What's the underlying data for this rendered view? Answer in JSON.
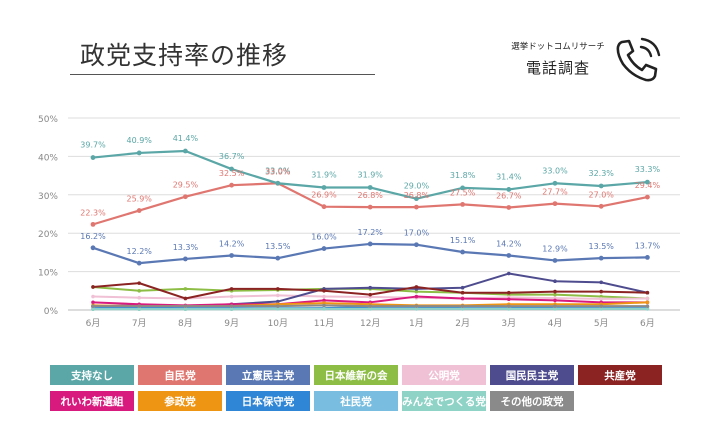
{
  "header": {
    "title": "政党支持率の推移",
    "source_name": "選挙ドットコムリサーチ",
    "source_title": "電話調査"
  },
  "chart_data": {
    "type": "line",
    "categories": [
      "6月",
      "7月",
      "8月",
      "9月",
      "10月",
      "11月",
      "12月",
      "1月",
      "2月",
      "3月",
      "4月",
      "5月",
      "6月"
    ],
    "ylim": [
      0,
      50
    ],
    "yticks": [
      "0%",
      "10%",
      "20%",
      "30%",
      "40%",
      "50%"
    ],
    "grid": true,
    "legend_position": "bottom",
    "series": [
      {
        "name": "支持なし",
        "color": "#5ba6a6",
        "labeled": true,
        "label_dy": -10,
        "values": [
          39.7,
          40.9,
          41.4,
          36.7,
          33.0,
          31.9,
          31.9,
          29.0,
          31.8,
          31.4,
          33.0,
          32.3,
          33.3
        ],
        "labels": [
          "39.7%",
          "40.9%",
          "41.4%",
          "36.7%",
          "33.0%",
          "31.9%",
          "31.9%",
          "29.0%",
          "31.8%",
          "31.4%",
          "33.0%",
          "32.3%",
          "33.3%"
        ]
      },
      {
        "name": "自民党",
        "color": "#e07670",
        "labeled": true,
        "label_dy": -9,
        "values": [
          22.3,
          25.9,
          29.5,
          32.5,
          33.0,
          26.9,
          26.8,
          26.8,
          27.5,
          26.7,
          27.7,
          27.0,
          29.4
        ],
        "labels": [
          "22.3%",
          "25.9%",
          "29.5%",
          "32.5%",
          "33.0%",
          "26.9%",
          "26.8%",
          "26.8%",
          "27.5%",
          "26.7%",
          "27.7%",
          "27.0%",
          "29.4%"
        ]
      },
      {
        "name": "立憲民主党",
        "color": "#5a78b4",
        "labeled": true,
        "label_dy": -9,
        "values": [
          16.2,
          12.2,
          13.3,
          14.2,
          13.5,
          16.0,
          17.2,
          17.0,
          15.1,
          14.2,
          12.9,
          13.5,
          13.7
        ],
        "labels": [
          "16.2%",
          "12.2%",
          "13.3%",
          "14.2%",
          "13.5%",
          "16.0%",
          "17.2%",
          "17.0%",
          "15.1%",
          "14.2%",
          "12.9%",
          "13.5%",
          "13.7%"
        ]
      },
      {
        "name": "日本維新の会",
        "color": "#8dbd45",
        "values": [
          6.0,
          5.0,
          5.5,
          5.0,
          5.2,
          5.5,
          5.5,
          4.8,
          4.5,
          4.0,
          4.0,
          3.5,
          3.0
        ]
      },
      {
        "name": "公明党",
        "color": "#f0c0d4",
        "values": [
          3.5,
          3.2,
          3.0,
          3.5,
          3.8,
          3.5,
          3.4,
          3.2,
          3.0,
          3.3,
          3.1,
          2.9,
          3.0
        ]
      },
      {
        "name": "国民民主党",
        "color": "#4e4c8e",
        "values": [
          1.0,
          1.2,
          1.0,
          1.5,
          2.2,
          5.5,
          5.8,
          5.5,
          5.8,
          9.5,
          7.5,
          7.2,
          4.5
        ]
      },
      {
        "name": "共産党",
        "color": "#8b2323",
        "values": [
          6.0,
          7.0,
          3.0,
          5.5,
          5.5,
          5.0,
          4.0,
          6.0,
          4.5,
          4.5,
          4.8,
          4.8,
          4.5
        ]
      },
      {
        "name": "れいわ新選組",
        "color": "#d81a7e",
        "values": [
          2.0,
          1.5,
          1.2,
          1.5,
          1.5,
          2.5,
          2.0,
          3.5,
          3.0,
          2.8,
          2.5,
          2.0,
          2.0
        ]
      },
      {
        "name": "参政党",
        "color": "#ef9514",
        "values": [
          1.2,
          1.0,
          1.0,
          1.0,
          1.5,
          1.8,
          1.5,
          1.2,
          1.2,
          1.5,
          1.5,
          1.5,
          2.0
        ]
      },
      {
        "name": "日本保守党",
        "color": "#2f86d6",
        "values": [
          0.8,
          0.6,
          0.5,
          0.5,
          0.5,
          0.5,
          0.8,
          0.8,
          0.5,
          0.5,
          0.8,
          0.8,
          0.8
        ]
      },
      {
        "name": "社民党",
        "color": "#79bee0",
        "values": [
          0.3,
          0.3,
          0.3,
          0.3,
          0.5,
          0.3,
          0.3,
          0.3,
          0.3,
          0.3,
          0.3,
          0.3,
          0.3
        ]
      },
      {
        "name": "みんなでつくる党",
        "color": "#8fd2c6",
        "values": [
          0.2,
          0.2,
          0.2,
          0.2,
          0.3,
          0.3,
          0.3,
          0.3,
          0.3,
          0.3,
          0.3,
          0.3,
          0.3
        ]
      },
      {
        "name": "その他の政党",
        "color": "#8a8a8a",
        "values": [
          1.0,
          1.0,
          1.0,
          1.0,
          1.0,
          1.2,
          1.0,
          1.0,
          1.0,
          1.0,
          1.0,
          1.0,
          1.0
        ]
      }
    ]
  },
  "legend_rows": [
    [
      {
        "label": "支持なし",
        "color": "#5ba6a6"
      },
      {
        "label": "自民党",
        "color": "#e07670"
      },
      {
        "label": "立憲民主党",
        "color": "#5a78b4"
      },
      {
        "label": "日本維新の会",
        "color": "#8dbd45"
      },
      {
        "label": "公明党",
        "color": "#f0c0d4"
      },
      {
        "label": "国民民主党",
        "color": "#4e4c8e"
      },
      {
        "label": "共産党",
        "color": "#8b2323"
      }
    ],
    [
      {
        "label": "れいわ新選組",
        "color": "#d81a7e"
      },
      {
        "label": "参政党",
        "color": "#ef9514"
      },
      {
        "label": "日本保守党",
        "color": "#2f86d6"
      },
      {
        "label": "社民党",
        "color": "#79bee0"
      },
      {
        "label": "みんなでつくる党",
        "color": "#8fd2c6"
      },
      {
        "label": "その他の政党",
        "color": "#8a8a8a"
      }
    ]
  ]
}
